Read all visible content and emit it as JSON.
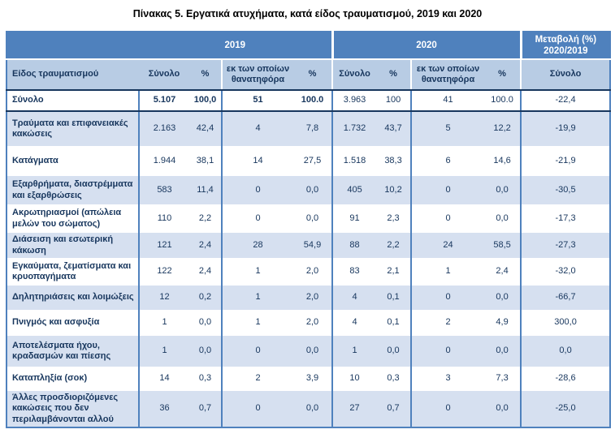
{
  "title": "Πίνακας 5. Εργατικά ατυχήματα, κατά είδος τραυματισμού, 2019 και 2020",
  "colors": {
    "header_dark_bg": "#4F81BD",
    "header_light_bg": "#B8CCE4",
    "row_alt_bg": "#D6E0F0",
    "text_navy": "#17365D",
    "border_blue": "#4F81BD",
    "border_navy": "#17365D"
  },
  "table": {
    "group_headers": [
      {
        "label": "",
        "span": 1
      },
      {
        "label": "2019",
        "span": 4
      },
      {
        "label": "2020",
        "span": 4
      },
      {
        "label": "Μεταβολή (%) 2020/2019",
        "span": 1
      }
    ],
    "column_headers": [
      "Είδος τραυματισμού",
      "Σύνολο",
      "%",
      "εκ των οποίων θανατηφόρα",
      "%",
      "Σύνολο",
      "%",
      "εκ των οποίων θανατηφόρα",
      "%",
      "Σύνολο"
    ],
    "rows": [
      {
        "label": "Σύνολο",
        "values": [
          "5.107",
          "100,0",
          "51",
          "100.0",
          "3.963",
          "100",
          "41",
          "100.0",
          "-22,4"
        ],
        "is_total": true
      },
      {
        "label": "Τραύματα και επιφανειακές κακώσεις",
        "values": [
          "2.163",
          "42,4",
          "4",
          "7,8",
          "1.732",
          "43,7",
          "5",
          "12,2",
          "-19,9"
        ]
      },
      {
        "label": "Κατάγματα",
        "values": [
          "1.944",
          "38,1",
          "14",
          "27,5",
          "1.518",
          "38,3",
          "6",
          "14,6",
          "-21,9"
        ]
      },
      {
        "label": "Εξαρθρήματα, διαστρέμματα και εξαρθρώσεις",
        "values": [
          "583",
          "11,4",
          "0",
          "0,0",
          "405",
          "10,2",
          "0",
          "0,0",
          "-30,5"
        ]
      },
      {
        "label": "Ακρωτηριασμοί (απώλεια μελών του σώματος)",
        "values": [
          "110",
          "2,2",
          "0",
          "0,0",
          "91",
          "2,3",
          "0",
          "0,0",
          "-17,3"
        ]
      },
      {
        "label": "Διάσειση και εσωτερική κάκωση",
        "values": [
          "121",
          "2,4",
          "28",
          "54,9",
          "88",
          "2,2",
          "24",
          "58,5",
          "-27,3"
        ]
      },
      {
        "label": "Εγκαύματα, ζεματίσματα και κρυοπαγήματα",
        "values": [
          "122",
          "2,4",
          "1",
          "2,0",
          "83",
          "2,1",
          "1",
          "2,4",
          "-32,0"
        ]
      },
      {
        "label": "Δηλητηριάσεις και λοιμώξεις",
        "values": [
          "12",
          "0,2",
          "1",
          "2,0",
          "4",
          "0,1",
          "0",
          "0,0",
          "-66,7"
        ]
      },
      {
        "label": "Πνιγμός και ασφυξία",
        "values": [
          "1",
          "0,0",
          "1",
          "2,0",
          "4",
          "0,1",
          "2",
          "4,9",
          "300,0"
        ]
      },
      {
        "label": "Αποτελέσματα ήχου, κραδασμών και πίεσης",
        "values": [
          "1",
          "0,0",
          "0",
          "0,0",
          "1",
          "0,0",
          "0",
          "0,0",
          "0,0"
        ]
      },
      {
        "label": "Καταπληξία (σοκ)",
        "values": [
          "14",
          "0,3",
          "2",
          "3,9",
          "10",
          "0,3",
          "3",
          "7,3",
          "-28,6"
        ]
      },
      {
        "label": "Άλλες προσδιοριζόμενες κακώσεις που δεν περιλαμβάνονται αλλού",
        "values": [
          "36",
          "0,7",
          "0",
          "0,0",
          "27",
          "0,7",
          "0",
          "0,0",
          "-25,0"
        ]
      }
    ]
  }
}
